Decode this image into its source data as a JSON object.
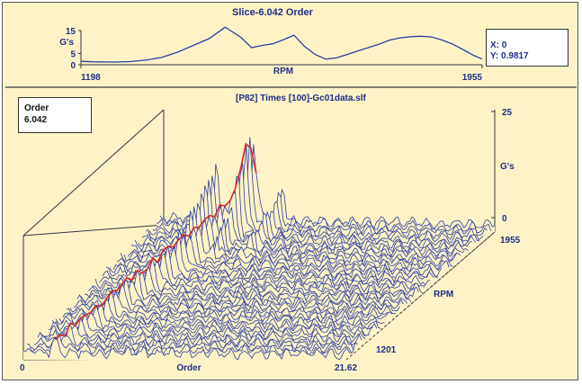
{
  "chart_data": [
    {
      "type": "line",
      "title": "Slice-6.042 Order",
      "xlabel": "RPM",
      "ylabel": "G's",
      "x_range": [
        1198,
        1955
      ],
      "ylim": [
        0,
        15
      ],
      "y_ticks": [
        "15",
        "5",
        "0"
      ],
      "x_ticks": [
        "1198",
        "1955"
      ],
      "line_color": "#2e3fa3",
      "series": [
        {
          "x": [
            1198,
            1220,
            1260,
            1290,
            1320,
            1350,
            1380,
            1410,
            1440,
            1470,
            1500,
            1520,
            1540,
            1560,
            1580,
            1600,
            1620,
            1640,
            1660,
            1680,
            1700,
            1720,
            1740,
            1760,
            1780,
            1800,
            1820,
            1840,
            1860,
            1880,
            1900,
            1920,
            1940,
            1955
          ],
          "values": [
            1.5,
            1.3,
            1.2,
            1.4,
            2.0,
            3.2,
            5.5,
            8.5,
            11.5,
            16.5,
            12.0,
            7.5,
            8.5,
            9.2,
            11.0,
            13.0,
            8.0,
            4.5,
            2.5,
            3.0,
            4.5,
            6.0,
            7.5,
            9.0,
            10.8,
            11.8,
            12.3,
            12.5,
            12.2,
            10.8,
            9.0,
            6.5,
            4.0,
            2.5
          ]
        }
      ]
    },
    {
      "type": "area",
      "title": "[P82] Times [100]-Gc01data.slf",
      "xlabel": "Order",
      "ylabel": "RPM",
      "zlabel": "G's",
      "x_range": [
        0,
        21.62
      ],
      "y_range": [
        1201,
        1955
      ],
      "zlim": [
        0,
        25
      ],
      "x_ticks": [
        "0",
        "21.62"
      ],
      "y_ticks": [
        "1201",
        "1955"
      ],
      "z_ticks": [
        "25",
        "0"
      ],
      "line_color": "#2e3fa3",
      "highlight_color": "#d42a2a",
      "highlight_order": 6.042,
      "series_count": 40
    }
  ],
  "readout": {
    "x_text": "X: 0",
    "y_text": "Y: 0.9817"
  },
  "order_box": {
    "label": "Order",
    "value": "6.042"
  }
}
